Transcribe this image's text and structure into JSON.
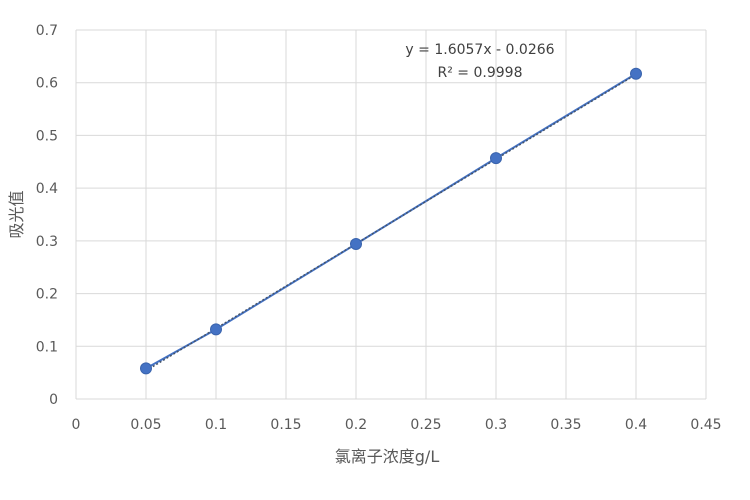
{
  "chart_data": {
    "type": "scatter",
    "xlabel": "氯离子浓度g/L",
    "ylabel": "吸光值",
    "xlim": [
      0,
      0.45
    ],
    "ylim": [
      0,
      0.7
    ],
    "x_ticks": [
      "0",
      "0.05",
      "0.1",
      "0.15",
      "0.2",
      "0.25",
      "0.3",
      "0.35",
      "0.4",
      "0.45"
    ],
    "y_ticks": [
      "0",
      "0.1",
      "0.2",
      "0.3",
      "0.4",
      "0.5",
      "0.6",
      "0.7"
    ],
    "grid": true,
    "series": [
      {
        "color": "#4472c4",
        "x": [
          0.05,
          0.1,
          0.2,
          0.3,
          0.4
        ],
        "y": [
          0.058,
          0.132,
          0.294,
          0.457,
          0.617
        ]
      }
    ],
    "trendline": {
      "type": "linear",
      "slope": 1.6057,
      "intercept": -0.0266,
      "equation": "y = 1.6057x - 0.0266",
      "r_squared": "R² = 0.9998",
      "color": "#44546a"
    },
    "colors": {
      "marker": "#4472c4",
      "line": "#44546a",
      "grid": "#d9d9d9",
      "text": "#595959"
    }
  }
}
